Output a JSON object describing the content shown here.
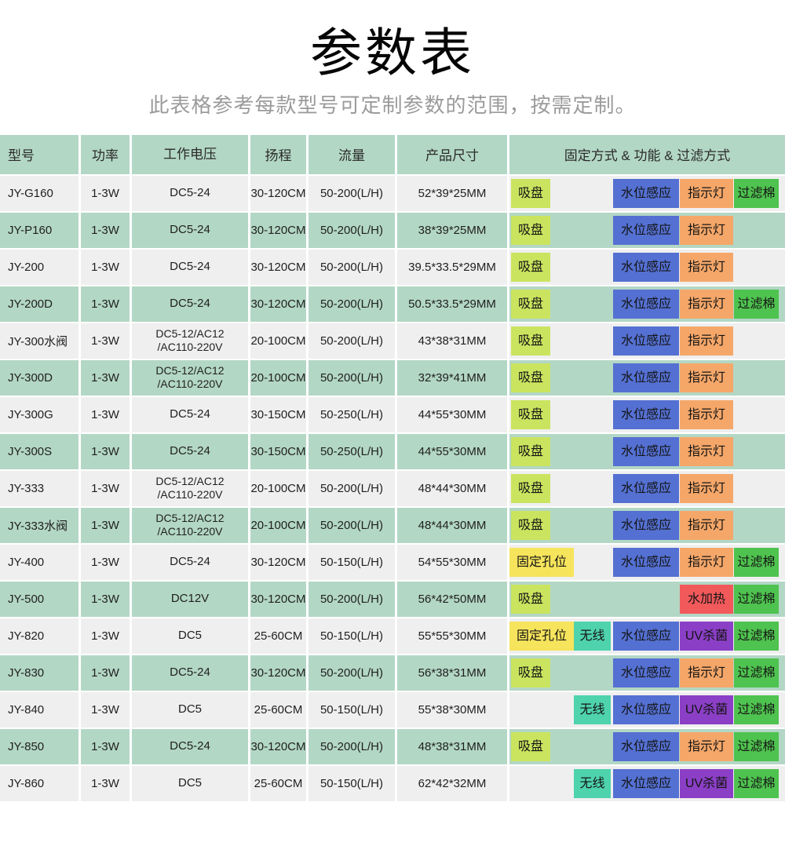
{
  "page": {
    "title": "参数表",
    "subtitle": "此表格参考每款型号可定制参数的范围，按需定制。"
  },
  "colors": {
    "page_bg": "#ffffff",
    "header_bg": "#b3d7c5",
    "row_even_bg": "#efefef",
    "row_odd_bg": "#b3d7c5"
  },
  "table": {
    "headers": [
      "型号",
      "功率",
      "工作电压",
      "扬程",
      "流量",
      "产品尺寸",
      "固定方式 & 功能 & 过滤方式"
    ],
    "tag_colors": {
      "suction": "#cbe45f",
      "mount": "#f6e45c",
      "wireless": "#4ed3ad",
      "level": "#5470d2",
      "indicator": "#f5a769",
      "uv": "#8b3fc6",
      "heater": "#f2595b",
      "filter": "#4fc34f"
    },
    "rows": [
      {
        "model": "JY-G160",
        "power": "1-3W",
        "voltage": "DC5-24",
        "lift": "30-120CM",
        "flow": "50-200(L/H)",
        "size": "52*39*25MM",
        "tags": [
          {
            "type": "suction",
            "label": "吸盘"
          },
          {
            "type": "level",
            "label": "水位感应"
          },
          {
            "type": "indicator",
            "label": "指示灯"
          },
          {
            "type": "filter",
            "label": "过滤棉"
          }
        ]
      },
      {
        "model": "JY-P160",
        "power": "1-3W",
        "voltage": "DC5-24",
        "lift": "30-120CM",
        "flow": "50-200(L/H)",
        "size": "38*39*25MM",
        "tags": [
          {
            "type": "suction",
            "label": "吸盘"
          },
          {
            "type": "level",
            "label": "水位感应"
          },
          {
            "type": "indicator",
            "label": "指示灯"
          }
        ]
      },
      {
        "model": "JY-200",
        "power": "1-3W",
        "voltage": "DC5-24",
        "lift": "30-120CM",
        "flow": "50-200(L/H)",
        "size": "39.5*33.5*29MM",
        "tags": [
          {
            "type": "suction",
            "label": "吸盘"
          },
          {
            "type": "level",
            "label": "水位感应"
          },
          {
            "type": "indicator",
            "label": "指示灯"
          }
        ]
      },
      {
        "model": "JY-200D",
        "power": "1-3W",
        "voltage": "DC5-24",
        "lift": "30-120CM",
        "flow": "50-200(L/H)",
        "size": "50.5*33.5*29MM",
        "tags": [
          {
            "type": "suction",
            "label": "吸盘"
          },
          {
            "type": "level",
            "label": "水位感应"
          },
          {
            "type": "indicator",
            "label": "指示灯"
          },
          {
            "type": "filter",
            "label": "过滤棉"
          }
        ]
      },
      {
        "model": "JY-300水阀",
        "power": "1-3W",
        "voltage": "DC5-12/AC12\n/AC110-220V",
        "lift": "20-100CM",
        "flow": "50-200(L/H)",
        "size": "43*38*31MM",
        "tags": [
          {
            "type": "suction",
            "label": "吸盘"
          },
          {
            "type": "level",
            "label": "水位感应"
          },
          {
            "type": "indicator",
            "label": "指示灯"
          }
        ]
      },
      {
        "model": "JY-300D",
        "power": "1-3W",
        "voltage": "DC5-12/AC12\n/AC110-220V",
        "lift": "20-100CM",
        "flow": "50-200(L/H)",
        "size": "32*39*41MM",
        "tags": [
          {
            "type": "suction",
            "label": "吸盘"
          },
          {
            "type": "level",
            "label": "水位感应"
          },
          {
            "type": "indicator",
            "label": "指示灯"
          }
        ]
      },
      {
        "model": "JY-300G",
        "power": "1-3W",
        "voltage": "DC5-24",
        "lift": "30-150CM",
        "flow": "50-250(L/H)",
        "size": "44*55*30MM",
        "tags": [
          {
            "type": "suction",
            "label": "吸盘"
          },
          {
            "type": "level",
            "label": "水位感应"
          },
          {
            "type": "indicator",
            "label": "指示灯"
          }
        ]
      },
      {
        "model": "JY-300S",
        "power": "1-3W",
        "voltage": "DC5-24",
        "lift": "30-150CM",
        "flow": "50-250(L/H)",
        "size": "44*55*30MM",
        "tags": [
          {
            "type": "suction",
            "label": "吸盘"
          },
          {
            "type": "level",
            "label": "水位感应"
          },
          {
            "type": "indicator",
            "label": "指示灯"
          }
        ]
      },
      {
        "model": "JY-333",
        "power": "1-3W",
        "voltage": "DC5-12/AC12\n/AC110-220V",
        "lift": "20-100CM",
        "flow": "50-200(L/H)",
        "size": "48*44*30MM",
        "tags": [
          {
            "type": "suction",
            "label": "吸盘"
          },
          {
            "type": "level",
            "label": "水位感应"
          },
          {
            "type": "indicator",
            "label": "指示灯"
          }
        ]
      },
      {
        "model": "JY-333水阀",
        "power": "1-3W",
        "voltage": "DC5-12/AC12\n/AC110-220V",
        "lift": "20-100CM",
        "flow": "50-200(L/H)",
        "size": "48*44*30MM",
        "tags": [
          {
            "type": "suction",
            "label": "吸盘"
          },
          {
            "type": "level",
            "label": "水位感应"
          },
          {
            "type": "indicator",
            "label": "指示灯"
          }
        ]
      },
      {
        "model": "JY-400",
        "power": "1-3W",
        "voltage": "DC5-24",
        "lift": "30-120CM",
        "flow": "50-150(L/H)",
        "size": "54*55*30MM",
        "tags": [
          {
            "type": "mount",
            "label": "固定孔位"
          },
          {
            "type": "level",
            "label": "水位感应"
          },
          {
            "type": "indicator",
            "label": "指示灯"
          },
          {
            "type": "filter",
            "label": "过滤棉"
          }
        ]
      },
      {
        "model": "JY-500",
        "power": "1-3W",
        "voltage": "DC12V",
        "lift": "30-120CM",
        "flow": "50-200(L/H)",
        "size": "56*42*50MM",
        "tags": [
          {
            "type": "suction",
            "label": "吸盘"
          },
          {
            "type": "heater",
            "label": "水加热"
          },
          {
            "type": "filter",
            "label": "过滤棉"
          }
        ]
      },
      {
        "model": "JY-820",
        "power": "1-3W",
        "voltage": "DC5",
        "lift": "25-60CM",
        "flow": "50-150(L/H)",
        "size": "55*55*30MM",
        "tags": [
          {
            "type": "mount",
            "label": "固定孔位"
          },
          {
            "type": "wireless",
            "label": "无线"
          },
          {
            "type": "level",
            "label": "水位感应"
          },
          {
            "type": "uv",
            "label": "UV杀菌"
          },
          {
            "type": "filter",
            "label": "过滤棉"
          }
        ]
      },
      {
        "model": "JY-830",
        "power": "1-3W",
        "voltage": "DC5-24",
        "lift": "30-120CM",
        "flow": "50-200(L/H)",
        "size": "56*38*31MM",
        "tags": [
          {
            "type": "suction",
            "label": "吸盘"
          },
          {
            "type": "level",
            "label": "水位感应"
          },
          {
            "type": "indicator",
            "label": "指示灯"
          },
          {
            "type": "filter",
            "label": "过滤棉"
          }
        ]
      },
      {
        "model": "JY-840",
        "power": "1-3W",
        "voltage": "DC5",
        "lift": "25-60CM",
        "flow": "50-150(L/H)",
        "size": "55*38*30MM",
        "tags": [
          {
            "type": "wireless",
            "label": "无线"
          },
          {
            "type": "level",
            "label": "水位感应"
          },
          {
            "type": "uv",
            "label": "UV杀菌"
          },
          {
            "type": "filter",
            "label": "过滤棉"
          }
        ]
      },
      {
        "model": "JY-850",
        "power": "1-3W",
        "voltage": "DC5-24",
        "lift": "30-120CM",
        "flow": "50-200(L/H)",
        "size": "48*38*31MM",
        "tags": [
          {
            "type": "suction",
            "label": "吸盘"
          },
          {
            "type": "level",
            "label": "水位感应"
          },
          {
            "type": "indicator",
            "label": "指示灯"
          },
          {
            "type": "filter",
            "label": "过滤棉"
          }
        ]
      },
      {
        "model": "JY-860",
        "power": "1-3W",
        "voltage": "DC5",
        "lift": "25-60CM",
        "flow": "50-150(L/H)",
        "size": "62*42*32MM",
        "tags": [
          {
            "type": "wireless",
            "label": "无线"
          },
          {
            "type": "level",
            "label": "水位感应"
          },
          {
            "type": "uv",
            "label": "UV杀菌"
          },
          {
            "type": "filter",
            "label": "过滤棉"
          }
        ]
      }
    ]
  }
}
